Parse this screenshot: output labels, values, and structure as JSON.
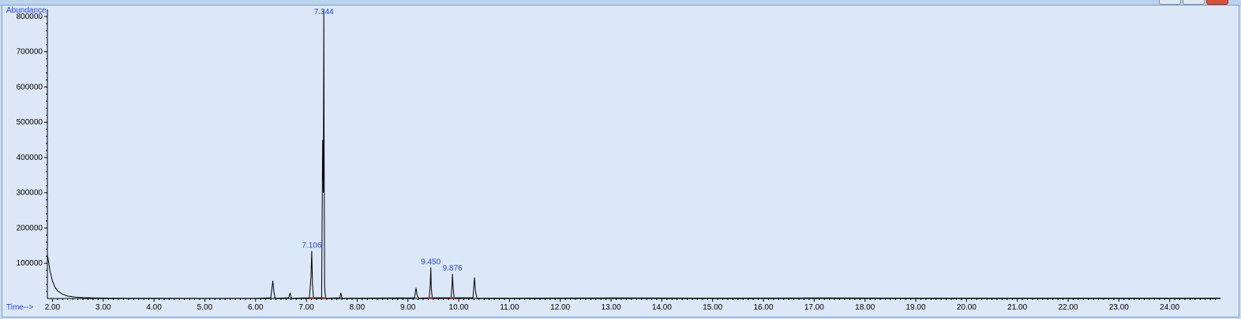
{
  "window": {
    "title": "",
    "buttons": [
      "minimize-button",
      "maximize-button",
      "close-button"
    ]
  },
  "chart_data": {
    "type": "line",
    "ylabel": "Abundance",
    "xlabel": "Time-->",
    "xlim": [
      1.9,
      25.0
    ],
    "ylim": [
      0,
      820000
    ],
    "x_ticks": [
      "2.00",
      "3.00",
      "4.00",
      "5.00",
      "6.00",
      "7.00",
      "8.00",
      "9.00",
      "10.00",
      "11.00",
      "12.00",
      "13.00",
      "14.00",
      "15.00",
      "16.00",
      "17.00",
      "18.00",
      "19.00",
      "20.00",
      "21.00",
      "22.00",
      "23.00",
      "24.00"
    ],
    "y_ticks": [
      "100000",
      "200000",
      "300000",
      "400000",
      "500000",
      "600000",
      "700000",
      "800000"
    ],
    "grid": false,
    "series": [
      {
        "x": [
          1.9,
          1.95,
          2.0,
          2.05,
          2.1,
          2.2,
          2.3,
          2.45,
          2.6,
          2.8,
          3.1,
          3.5,
          4.0,
          5.0,
          6.0,
          6.3,
          6.34,
          6.36,
          6.38,
          6.42,
          6.65,
          6.68,
          6.7,
          6.73,
          7.06,
          7.09,
          7.106,
          7.12,
          7.14,
          7.3,
          7.32,
          7.334,
          7.344,
          7.35,
          7.36,
          7.38,
          7.4,
          7.66,
          7.68,
          7.7,
          7.72,
          9.13,
          9.16,
          9.18,
          9.21,
          9.42,
          9.44,
          9.45,
          9.46,
          9.48,
          9.85,
          9.87,
          9.876,
          9.89,
          9.91,
          10.28,
          10.31,
          10.33,
          10.36,
          11.0,
          13.0,
          15.0,
          17.0,
          19.0,
          21.0,
          23.0,
          25.0
        ],
        "y": [
          125000,
          80000,
          50000,
          32000,
          22000,
          12000,
          7000,
          4000,
          2500,
          1800,
          1200,
          900,
          800,
          700,
          700,
          2000,
          50000,
          20000,
          2000,
          800,
          2000,
          16000,
          2000,
          800,
          2000,
          60000,
          135000,
          40000,
          2000,
          2000,
          450000,
          300000,
          820000,
          400000,
          30000,
          2000,
          800,
          2000,
          16000,
          2000,
          800,
          2000,
          30000,
          10000,
          800,
          2000,
          40000,
          88000,
          30000,
          2000,
          2000,
          40000,
          70000,
          30000,
          2000,
          2000,
          60000,
          20000,
          1000,
          1200,
          1500,
          1200,
          1500,
          1200,
          1200,
          1200,
          1200
        ]
      }
    ],
    "annotations": [
      {
        "text": "7.344",
        "x": 7.344,
        "y": 820000
      },
      {
        "text": "7.106",
        "x": 7.106,
        "y": 135000
      },
      {
        "text": "9.450",
        "x": 9.45,
        "y": 88000
      },
      {
        "text": "9.876",
        "x": 9.876,
        "y": 70000
      }
    ],
    "integration_marks": [
      7.106,
      7.344,
      9.45,
      9.876
    ]
  }
}
